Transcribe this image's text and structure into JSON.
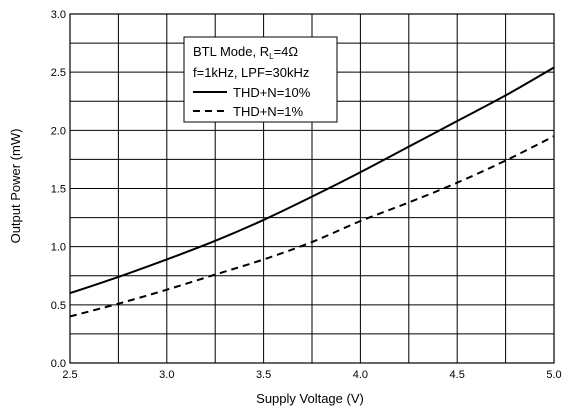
{
  "chart_data": {
    "type": "line",
    "xlabel": "Supply Voltage (V)",
    "ylabel": "Output Power (mW)",
    "xlim": [
      2.5,
      5.0
    ],
    "ylim": [
      0.0,
      3.0
    ],
    "x_ticks": [
      "2.5",
      "3.0",
      "3.5",
      "4.0",
      "4.5",
      "5.0"
    ],
    "y_ticks": [
      "0.0",
      "0.5",
      "1.0",
      "1.5",
      "2.0",
      "2.5",
      "3.0"
    ],
    "grid": true,
    "legend_placement": "top-center",
    "annotations": {
      "mode_prefix": "BTL Mode, R",
      "mode_subscript": "L",
      "mode_suffix": "=4Ω",
      "conditions": "f=1kHz, LPF=30kHz"
    },
    "series": [
      {
        "name": "THD+N=10%",
        "style": "solid",
        "x": [
          2.5,
          2.75,
          3.0,
          3.25,
          3.5,
          3.75,
          4.0,
          4.25,
          4.5,
          4.75,
          5.0
        ],
        "y": [
          0.6,
          0.74,
          0.89,
          1.05,
          1.23,
          1.43,
          1.64,
          1.86,
          2.08,
          2.3,
          2.54
        ]
      },
      {
        "name": "THD+N=1%",
        "style": "dashed",
        "x": [
          2.5,
          2.75,
          3.0,
          3.25,
          3.5,
          3.75,
          4.0,
          4.25,
          4.5,
          4.75,
          5.0
        ],
        "y": [
          0.4,
          0.51,
          0.63,
          0.76,
          0.89,
          1.04,
          1.22,
          1.38,
          1.55,
          1.74,
          1.95
        ]
      }
    ]
  }
}
